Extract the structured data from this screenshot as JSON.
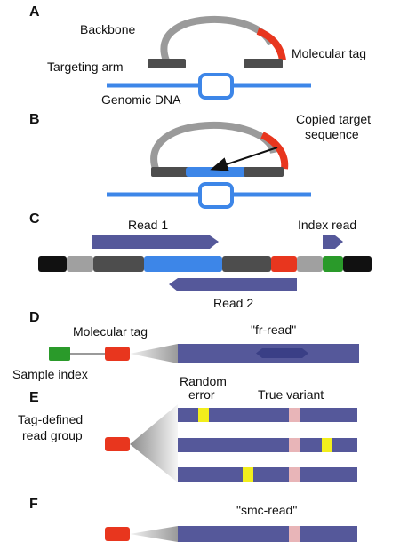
{
  "colors": {
    "backbone": "#9a9a9a",
    "dark_gray": "#4d4d4d",
    "molecular_tag": "#e8361e",
    "genomic_blue": "#3d86e8",
    "read_navy": "#55589a",
    "read_dark": "#3a3f86",
    "sample_green": "#2a9a2a",
    "error_yellow": "#f2ee1c",
    "variant_pink": "#e8b5b8",
    "black": "#111111",
    "light_gray": "#a0a0a0"
  },
  "panel_a": {
    "letter": "A",
    "backbone": "Backbone",
    "molecular_tag": "Molecular tag",
    "targeting_arm": "Targeting arm",
    "genomic_dna": "Genomic DNA"
  },
  "panel_b": {
    "letter": "B",
    "copied_line1": "Copied target",
    "copied_line2": "sequence"
  },
  "panel_c": {
    "letter": "C",
    "read1": "Read 1",
    "index_read": "Index read",
    "read2": "Read 2"
  },
  "panel_d": {
    "letter": "D",
    "molecular_tag": "Molecular tag",
    "fr_read": "\"fr-read\"",
    "sample_index": "Sample index"
  },
  "panel_e": {
    "letter": "E",
    "random_error_line1": "Random",
    "random_error_line2": "error",
    "true_variant": "True variant",
    "tag_group_line1": "Tag-defined",
    "tag_group_line2": "read group"
  },
  "panel_f": {
    "letter": "F",
    "smc_read": "\"smc-read\""
  }
}
